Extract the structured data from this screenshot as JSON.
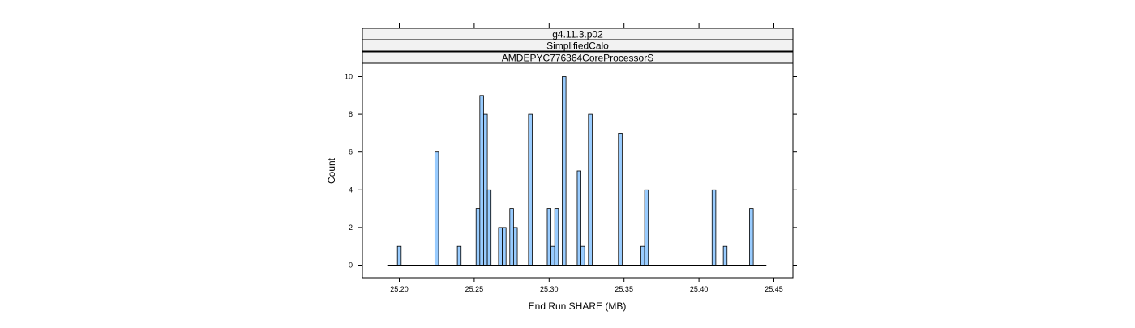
{
  "strips": [
    "g4.11.3.p02",
    "SimplifiedCalo",
    "AMDEPYC776364CoreProcessorS"
  ],
  "chart_data": {
    "type": "bar",
    "xlabel": "End Run SHARE (MB)",
    "ylabel": "Count",
    "xlim": [
      25.19,
      25.45
    ],
    "ylim": [
      0,
      10
    ],
    "x_ticks": [
      "25.20",
      "25.25",
      "25.30",
      "25.35",
      "25.40",
      "25.45"
    ],
    "y_ticks": [
      "0",
      "2",
      "4",
      "6",
      "8",
      "10"
    ],
    "bar_width": 0.0025,
    "baseline_range": [
      25.192,
      25.445
    ],
    "x": [
      25.2,
      25.225,
      25.24,
      25.2525,
      25.255,
      25.2575,
      25.26,
      25.2675,
      25.27,
      25.275,
      25.2775,
      25.2875,
      25.3,
      25.3025,
      25.305,
      25.31,
      25.32,
      25.3225,
      25.3275,
      25.3475,
      25.3625,
      25.365,
      25.41,
      25.4175,
      25.435
    ],
    "values": [
      1,
      6,
      1,
      3,
      9,
      8,
      4,
      2,
      2,
      3,
      2,
      8,
      3,
      1,
      3,
      10,
      5,
      1,
      8,
      7,
      1,
      4,
      4,
      1,
      3
    ],
    "bar_color": "#99ccff",
    "bar_stroke": "#000000",
    "strip_fill": "#f2f2f2"
  }
}
